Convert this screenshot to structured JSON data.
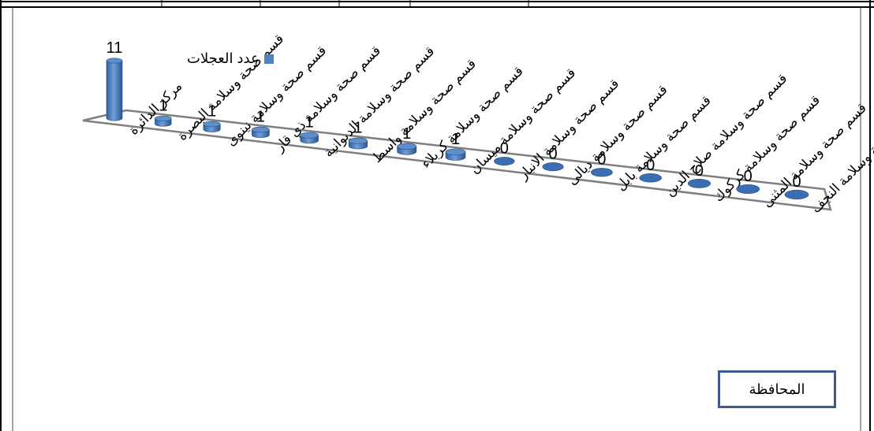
{
  "chart_data": {
    "type": "bar",
    "categories": [
      "مركز الدائرة",
      "قسم صحة وسلامة البصرة",
      "قسم صحة وسلامة نينوى",
      "قسم صحة وسلامة ذي قار",
      "قسم صحة وسلامة الديوانية",
      "قسم صحة وسلامة واسط",
      "قسم صحة وسلامة كربلاء",
      "قسم صحة وسلامة ميسان",
      "قسم صحة وسلامة الانبار",
      "قسم صحة وسلامة ديالى",
      "قسم صحة وسلامة بابل",
      "قسم صحة وسلامة صلاح الدين",
      "قسم صحة وسلامة كركوك",
      "قسم صحة وسلامة المثنى",
      "قسم صحة وسلامة النجف"
    ],
    "series": [
      {
        "name": "عدد العجلات",
        "values": [
          11,
          1,
          1,
          1,
          1,
          1,
          1,
          1,
          0,
          0,
          0,
          0,
          0,
          0,
          0
        ],
        "color": "#4f81bd"
      }
    ],
    "xlabel": "المحافظة",
    "ylabel": "",
    "ylim": [
      0,
      11
    ],
    "legend": "top-left",
    "grid": false,
    "shape": "cylinder"
  }
}
